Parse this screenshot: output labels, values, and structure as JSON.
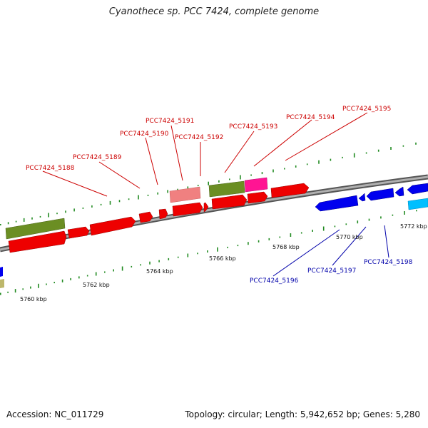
{
  "title": "Cyanothece sp. PCC 7424, complete genome",
  "footer": {
    "accession": "Accession: NC_011729",
    "topology": "Topology: circular; Length: 5,942,652 bp; Genes: 5,280"
  },
  "colors": {
    "forward_gene": "#ff0000",
    "reverse_gene": "#0000ff",
    "olive_feature": "#6b8e23",
    "light_pink_feature": "#f08080",
    "magenta_feature": "#ff00aa",
    "cyan_feature": "#00bfff",
    "forward_label": "#cc0000",
    "reverse_label": "#0000aa",
    "gc_ticks": "#228b22",
    "backbone": "#808080"
  },
  "tick_labels": [
    "5760 kbp",
    "5762 kbp",
    "5764 kbp",
    "5766 kbp",
    "5768 kbp",
    "5770 kbp",
    "5772 kbp"
  ],
  "forward_gene_labels": [
    "PCC7424_5188",
    "PCC7424_5189",
    "PCC7424_5190",
    "PCC7424_5191",
    "PCC7424_5192",
    "PCC7424_5193",
    "PCC7424_5194",
    "PCC7424_5195"
  ],
  "reverse_gene_labels": [
    "PCC7424_5196",
    "PCC7424_5197",
    "PCC7424_5198"
  ]
}
